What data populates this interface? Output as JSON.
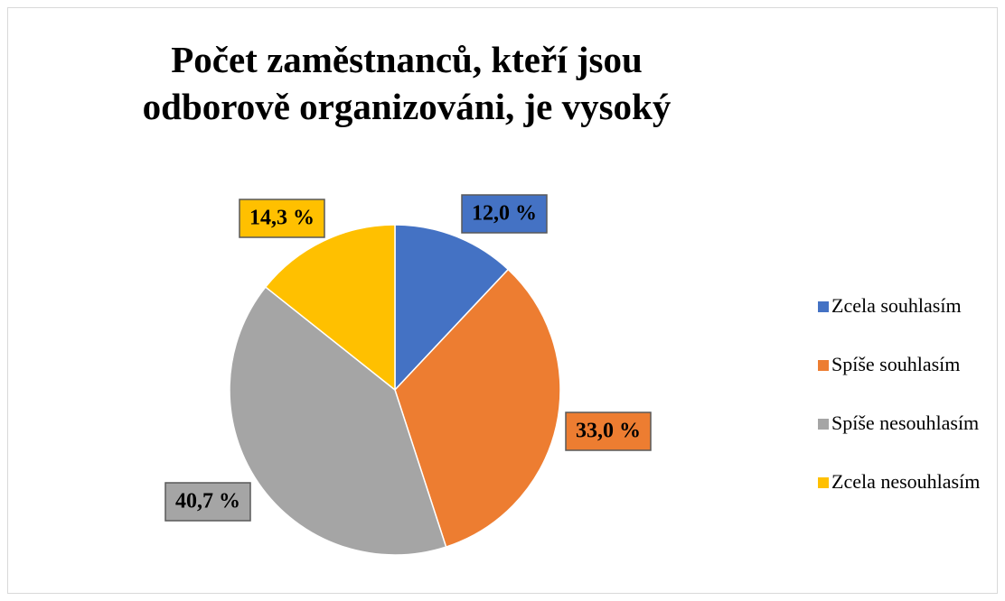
{
  "chart_data": {
    "type": "pie",
    "title": "Počet zaměstnanců, kteří jsou odborově organizováni, je vysoký",
    "categories": [
      "Zcela souhlasím",
      "Spíše souhlasím",
      "Spíše nesouhlasím",
      "Zcela nesouhlasím"
    ],
    "values": [
      12.0,
      33.0,
      40.7,
      14.3
    ],
    "value_labels": [
      "12,0 %",
      "33,0 %",
      "40,7 %",
      "14,3 %"
    ],
    "colors": [
      "#4472c4",
      "#ed7d31",
      "#a5a5a5",
      "#ffc000"
    ],
    "legend": "right"
  }
}
